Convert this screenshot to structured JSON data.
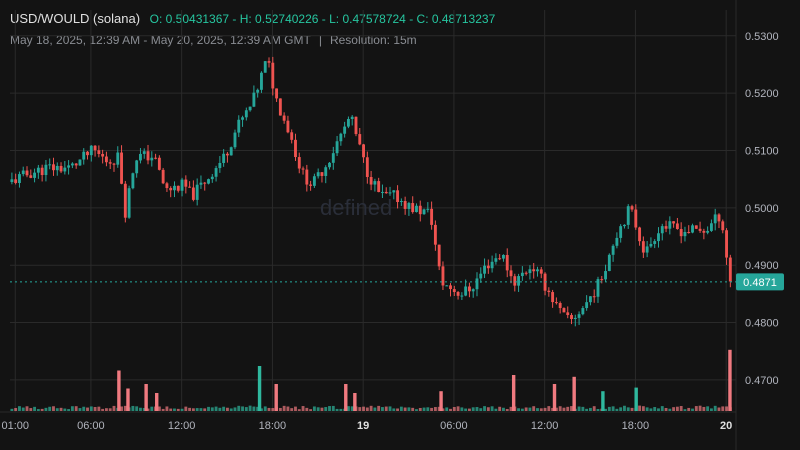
{
  "header": {
    "pair": "USD/WOULD (solana)",
    "ohlc": "O: 0.50431367 - H: 0.52740226 - L: 0.47578724 - C: 0.48713237",
    "range": "May 18, 2025, 12:39 AM - May 20, 2025, 12:39 AM GMT",
    "separator": "|",
    "resolution": "Resolution: 15m"
  },
  "watermark": "defined",
  "colors": {
    "up": "#26a69a",
    "down": "#ef5350",
    "up_bar": "#2fb89e",
    "down_bar": "#f07a80",
    "background": "#131313",
    "last_price": "#26a69a",
    "price_line": "#26a69a"
  },
  "chart_data": {
    "type": "candlestick",
    "y_ticks": [
      "0.5300",
      "0.5200",
      "0.5100",
      "0.5000",
      "0.4900",
      "0.4800",
      "0.4700"
    ],
    "y_tick_values": [
      0.53,
      0.52,
      0.51,
      0.5,
      0.49,
      0.48,
      0.47
    ],
    "ylim": [
      0.4644,
      0.5345
    ],
    "x_ticks": [
      {
        "label": "01:00",
        "h": 0.35,
        "bold": false
      },
      {
        "label": "06:00",
        "h": 5.35,
        "bold": false
      },
      {
        "label": "12:00",
        "h": 11.35,
        "bold": false
      },
      {
        "label": "18:00",
        "h": 17.35,
        "bold": false
      },
      {
        "label": "19",
        "h": 23.35,
        "bold": true
      },
      {
        "label": "06:00",
        "h": 29.35,
        "bold": false
      },
      {
        "label": "12:00",
        "h": 35.35,
        "bold": false
      },
      {
        "label": "18:00",
        "h": 41.35,
        "bold": false
      },
      {
        "label": "20",
        "h": 47.35,
        "bold": true
      }
    ],
    "x_range_hours": [
      0,
      48
    ],
    "last_price": "0.4871",
    "last_price_value": 0.4871,
    "anchors": [
      [
        0,
        0.5045
      ],
      [
        1.3,
        0.506
      ],
      [
        2.5,
        0.507
      ],
      [
        4,
        0.507
      ],
      [
        5.5,
        0.51
      ],
      [
        6.5,
        0.508
      ],
      [
        7.2,
        0.509
      ],
      [
        7.6,
        0.499
      ],
      [
        8.3,
        0.509
      ],
      [
        9.5,
        0.509
      ],
      [
        10.3,
        0.503
      ],
      [
        11.5,
        0.504
      ],
      [
        12,
        0.502
      ],
      [
        13,
        0.505
      ],
      [
        14.2,
        0.509
      ],
      [
        15,
        0.514
      ],
      [
        16,
        0.518
      ],
      [
        17,
        0.526
      ],
      [
        17.6,
        0.519
      ],
      [
        18.5,
        0.513
      ],
      [
        19.3,
        0.506
      ],
      [
        20,
        0.504
      ],
      [
        21,
        0.508
      ],
      [
        22.5,
        0.516
      ],
      [
        23.5,
        0.507
      ],
      [
        24.5,
        0.502
      ],
      [
        25.5,
        0.502
      ],
      [
        26.5,
        0.5
      ],
      [
        27.8,
        0.499
      ],
      [
        28.5,
        0.487
      ],
      [
        29.8,
        0.485
      ],
      [
        30.5,
        0.486
      ],
      [
        31.5,
        0.49
      ],
      [
        32.5,
        0.492
      ],
      [
        33.3,
        0.487
      ],
      [
        34.5,
        0.49
      ],
      [
        35.5,
        0.486
      ],
      [
        36.3,
        0.482
      ],
      [
        37,
        0.48
      ],
      [
        38,
        0.483
      ],
      [
        39,
        0.487
      ],
      [
        40,
        0.495
      ],
      [
        41,
        0.5
      ],
      [
        42,
        0.492
      ],
      [
        43,
        0.497
      ],
      [
        44.5,
        0.496
      ],
      [
        46,
        0.496
      ],
      [
        47,
        0.499
      ],
      [
        47.6,
        0.4871
      ]
    ],
    "candle_count": 192,
    "volume_spikes": [
      {
        "h": 7.2,
        "v": 0.45,
        "up": false
      },
      {
        "h": 7.8,
        "v": 0.25,
        "up": false
      },
      {
        "h": 9.0,
        "v": 0.3,
        "up": false
      },
      {
        "h": 9.7,
        "v": 0.2,
        "up": false
      },
      {
        "h": 16.5,
        "v": 0.5,
        "up": true
      },
      {
        "h": 17.6,
        "v": 0.3,
        "up": false
      },
      {
        "h": 22.2,
        "v": 0.3,
        "up": false
      },
      {
        "h": 22.8,
        "v": 0.2,
        "up": false
      },
      {
        "h": 28.5,
        "v": 0.22,
        "up": false
      },
      {
        "h": 33.3,
        "v": 0.4,
        "up": false
      },
      {
        "h": 36.0,
        "v": 0.3,
        "up": false
      },
      {
        "h": 37.3,
        "v": 0.38,
        "up": false
      },
      {
        "h": 39.2,
        "v": 0.22,
        "up": true
      },
      {
        "h": 41.4,
        "v": 0.26,
        "up": true
      },
      {
        "h": 47.6,
        "v": 0.68,
        "up": false
      }
    ],
    "volume_ylim": [
      0,
      1
    ]
  }
}
